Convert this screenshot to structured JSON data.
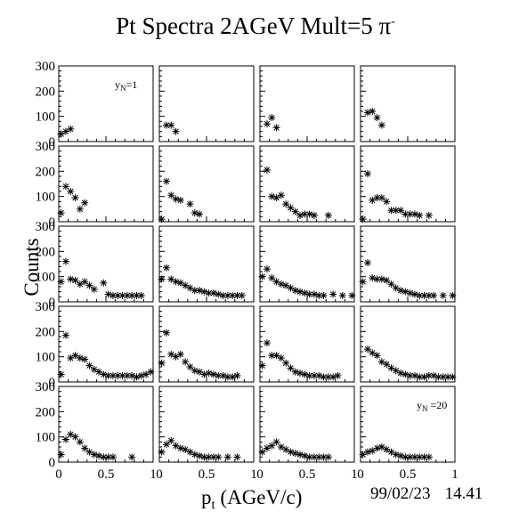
{
  "title": {
    "main": "Pt Spectra 2AGeV Mult=5 π",
    "superscript": "-"
  },
  "ylabel": "Counts",
  "xlabel": {
    "main": "p",
    "sub": "t",
    "rest": " (AGeV/c)"
  },
  "date": "99/02/23",
  "time": "14.41",
  "chart_data": {
    "type": "scatter",
    "marker": "asterisk",
    "grid": "4 columns x 5 rows",
    "xlim": [
      0,
      1
    ],
    "ylim": [
      0,
      300
    ],
    "xticks": [
      "0",
      "0.5",
      "1"
    ],
    "yticks": [
      "0",
      "100",
      "200",
      "300"
    ],
    "panels": [
      {
        "label": {
          "main": "y",
          "sub": "N",
          "rest": "=1"
        },
        "points": [
          [
            0.025,
            30
          ],
          [
            0.075,
            40
          ],
          [
            0.125,
            50
          ]
        ]
      },
      {
        "label": null,
        "points": [
          [
            0.075,
            65
          ],
          [
            0.125,
            65
          ],
          [
            0.175,
            40
          ]
        ]
      },
      {
        "label": null,
        "points": [
          [
            0.075,
            70
          ],
          [
            0.125,
            95
          ],
          [
            0.175,
            55
          ]
        ]
      },
      {
        "label": null,
        "points": [
          [
            0.075,
            115
          ],
          [
            0.125,
            120
          ],
          [
            0.175,
            95
          ],
          [
            0.225,
            65
          ]
        ]
      },
      {
        "label": null,
        "points": [
          [
            0.025,
            35
          ],
          [
            0.075,
            140
          ],
          [
            0.125,
            120
          ],
          [
            0.175,
            95
          ],
          [
            0.225,
            50
          ],
          [
            0.275,
            75
          ]
        ]
      },
      {
        "label": null,
        "points": [
          [
            0.025,
            10
          ],
          [
            0.075,
            160
          ],
          [
            0.125,
            105
          ],
          [
            0.175,
            90
          ],
          [
            0.225,
            85
          ],
          [
            0.325,
            70
          ],
          [
            0.375,
            35
          ],
          [
            0.425,
            30
          ]
        ]
      },
      {
        "label": null,
        "points": [
          [
            0.075,
            205
          ],
          [
            0.125,
            100
          ],
          [
            0.175,
            95
          ],
          [
            0.225,
            105
          ],
          [
            0.275,
            70
          ],
          [
            0.325,
            55
          ],
          [
            0.375,
            40
          ],
          [
            0.425,
            25
          ],
          [
            0.475,
            30
          ],
          [
            0.525,
            30
          ],
          [
            0.575,
            25
          ],
          [
            0.725,
            25
          ]
        ]
      },
      {
        "label": null,
        "points": [
          [
            0.025,
            10
          ],
          [
            0.075,
            190
          ],
          [
            0.125,
            85
          ],
          [
            0.175,
            95
          ],
          [
            0.225,
            95
          ],
          [
            0.275,
            80
          ],
          [
            0.325,
            45
          ],
          [
            0.375,
            45
          ],
          [
            0.425,
            45
          ],
          [
            0.475,
            30
          ],
          [
            0.525,
            30
          ],
          [
            0.575,
            30
          ],
          [
            0.625,
            25
          ],
          [
            0.725,
            25
          ]
        ]
      },
      {
        "label": null,
        "points": [
          [
            0.025,
            80
          ],
          [
            0.075,
            160
          ],
          [
            0.125,
            90
          ],
          [
            0.175,
            85
          ],
          [
            0.225,
            70
          ],
          [
            0.275,
            80
          ],
          [
            0.325,
            65
          ],
          [
            0.375,
            50
          ],
          [
            0.475,
            75
          ],
          [
            0.525,
            30
          ],
          [
            0.575,
            25
          ],
          [
            0.625,
            25
          ],
          [
            0.675,
            25
          ],
          [
            0.725,
            25
          ],
          [
            0.775,
            25
          ],
          [
            0.825,
            25
          ],
          [
            0.875,
            25
          ]
        ]
      },
      {
        "label": null,
        "points": [
          [
            0.025,
            90
          ],
          [
            0.075,
            135
          ],
          [
            0.125,
            90
          ],
          [
            0.175,
            80
          ],
          [
            0.225,
            75
          ],
          [
            0.275,
            65
          ],
          [
            0.325,
            55
          ],
          [
            0.375,
            45
          ],
          [
            0.425,
            45
          ],
          [
            0.475,
            40
          ],
          [
            0.525,
            35
          ],
          [
            0.575,
            35
          ],
          [
            0.625,
            30
          ],
          [
            0.675,
            25
          ],
          [
            0.725,
            25
          ],
          [
            0.775,
            25
          ],
          [
            0.825,
            25
          ],
          [
            0.875,
            25
          ]
        ]
      },
      {
        "label": null,
        "points": [
          [
            0.025,
            100
          ],
          [
            0.075,
            130
          ],
          [
            0.125,
            95
          ],
          [
            0.175,
            80
          ],
          [
            0.225,
            70
          ],
          [
            0.275,
            65
          ],
          [
            0.325,
            55
          ],
          [
            0.375,
            45
          ],
          [
            0.425,
            40
          ],
          [
            0.475,
            35
          ],
          [
            0.525,
            30
          ],
          [
            0.575,
            30
          ],
          [
            0.625,
            25
          ],
          [
            0.675,
            25
          ],
          [
            0.775,
            30
          ],
          [
            0.875,
            25
          ],
          [
            0.975,
            25
          ]
        ]
      },
      {
        "label": null,
        "points": [
          [
            0.025,
            80
          ],
          [
            0.075,
            155
          ],
          [
            0.125,
            95
          ],
          [
            0.175,
            90
          ],
          [
            0.225,
            90
          ],
          [
            0.275,
            85
          ],
          [
            0.325,
            70
          ],
          [
            0.375,
            55
          ],
          [
            0.425,
            45
          ],
          [
            0.475,
            40
          ],
          [
            0.525,
            35
          ],
          [
            0.575,
            30
          ],
          [
            0.625,
            25
          ],
          [
            0.675,
            25
          ],
          [
            0.725,
            25
          ],
          [
            0.775,
            25
          ],
          [
            0.875,
            25
          ],
          [
            0.975,
            25
          ]
        ]
      },
      {
        "label": null,
        "points": [
          [
            0.025,
            30
          ],
          [
            0.075,
            185
          ],
          [
            0.125,
            95
          ],
          [
            0.175,
            105
          ],
          [
            0.225,
            95
          ],
          [
            0.275,
            90
          ],
          [
            0.325,
            65
          ],
          [
            0.375,
            50
          ],
          [
            0.425,
            40
          ],
          [
            0.475,
            30
          ],
          [
            0.525,
            25
          ],
          [
            0.575,
            25
          ],
          [
            0.625,
            25
          ],
          [
            0.675,
            25
          ],
          [
            0.725,
            25
          ],
          [
            0.775,
            25
          ],
          [
            0.825,
            20
          ],
          [
            0.875,
            25
          ],
          [
            0.925,
            30
          ],
          [
            0.975,
            40
          ]
        ]
      },
      {
        "label": null,
        "points": [
          [
            0.025,
            75
          ],
          [
            0.075,
            195
          ],
          [
            0.125,
            110
          ],
          [
            0.175,
            100
          ],
          [
            0.225,
            110
          ],
          [
            0.275,
            80
          ],
          [
            0.325,
            60
          ],
          [
            0.375,
            45
          ],
          [
            0.425,
            40
          ],
          [
            0.475,
            30
          ],
          [
            0.525,
            35
          ],
          [
            0.575,
            30
          ],
          [
            0.625,
            25
          ],
          [
            0.675,
            25
          ],
          [
            0.725,
            20
          ],
          [
            0.775,
            20
          ],
          [
            0.825,
            25
          ]
        ]
      },
      {
        "label": null,
        "points": [
          [
            0.025,
            65
          ],
          [
            0.075,
            155
          ],
          [
            0.125,
            105
          ],
          [
            0.175,
            105
          ],
          [
            0.225,
            95
          ],
          [
            0.275,
            75
          ],
          [
            0.325,
            55
          ],
          [
            0.375,
            40
          ],
          [
            0.425,
            35
          ],
          [
            0.475,
            30
          ],
          [
            0.525,
            25
          ],
          [
            0.575,
            25
          ],
          [
            0.625,
            25
          ],
          [
            0.675,
            20
          ],
          [
            0.725,
            20
          ],
          [
            0.775,
            20
          ],
          [
            0.825,
            25
          ]
        ]
      },
      {
        "label": null,
        "points": [
          [
            0.075,
            130
          ],
          [
            0.125,
            115
          ],
          [
            0.175,
            105
          ],
          [
            0.225,
            80
          ],
          [
            0.275,
            70
          ],
          [
            0.325,
            55
          ],
          [
            0.375,
            45
          ],
          [
            0.425,
            35
          ],
          [
            0.475,
            30
          ],
          [
            0.525,
            25
          ],
          [
            0.575,
            25
          ],
          [
            0.625,
            20
          ],
          [
            0.675,
            20
          ],
          [
            0.725,
            25
          ],
          [
            0.775,
            25
          ],
          [
            0.825,
            20
          ],
          [
            0.875,
            20
          ],
          [
            0.925,
            20
          ],
          [
            0.975,
            20
          ]
        ]
      },
      {
        "label": null,
        "points": [
          [
            0.025,
            30
          ],
          [
            0.075,
            90
          ],
          [
            0.125,
            110
          ],
          [
            0.175,
            100
          ],
          [
            0.225,
            80
          ],
          [
            0.275,
            55
          ],
          [
            0.325,
            40
          ],
          [
            0.375,
            30
          ],
          [
            0.425,
            25
          ],
          [
            0.475,
            20
          ],
          [
            0.525,
            20
          ],
          [
            0.575,
            20
          ],
          [
            0.775,
            20
          ]
        ]
      },
      {
        "label": null,
        "points": [
          [
            0.025,
            40
          ],
          [
            0.075,
            70
          ],
          [
            0.125,
            85
          ],
          [
            0.175,
            65
          ],
          [
            0.225,
            55
          ],
          [
            0.275,
            50
          ],
          [
            0.325,
            40
          ],
          [
            0.375,
            30
          ],
          [
            0.425,
            25
          ],
          [
            0.475,
            20
          ],
          [
            0.525,
            20
          ],
          [
            0.575,
            20
          ],
          [
            0.625,
            20
          ],
          [
            0.725,
            20
          ],
          [
            0.825,
            20
          ]
        ]
      },
      {
        "label": null,
        "points": [
          [
            0.025,
            40
          ],
          [
            0.075,
            55
          ],
          [
            0.125,
            65
          ],
          [
            0.175,
            80
          ],
          [
            0.225,
            60
          ],
          [
            0.275,
            50
          ],
          [
            0.325,
            40
          ],
          [
            0.375,
            35
          ],
          [
            0.425,
            30
          ],
          [
            0.475,
            25
          ],
          [
            0.525,
            20
          ],
          [
            0.575,
            20
          ],
          [
            0.625,
            20
          ],
          [
            0.675,
            20
          ],
          [
            0.725,
            20
          ]
        ]
      },
      {
        "label": {
          "main": "y",
          "sub": "N",
          "rest": " =20"
        },
        "points": [
          [
            0.025,
            30
          ],
          [
            0.075,
            40
          ],
          [
            0.125,
            45
          ],
          [
            0.175,
            55
          ],
          [
            0.225,
            60
          ],
          [
            0.275,
            50
          ],
          [
            0.325,
            40
          ],
          [
            0.375,
            30
          ],
          [
            0.425,
            25
          ],
          [
            0.475,
            20
          ],
          [
            0.525,
            20
          ],
          [
            0.575,
            20
          ],
          [
            0.625,
            20
          ],
          [
            0.675,
            20
          ],
          [
            0.725,
            20
          ]
        ]
      }
    ]
  }
}
